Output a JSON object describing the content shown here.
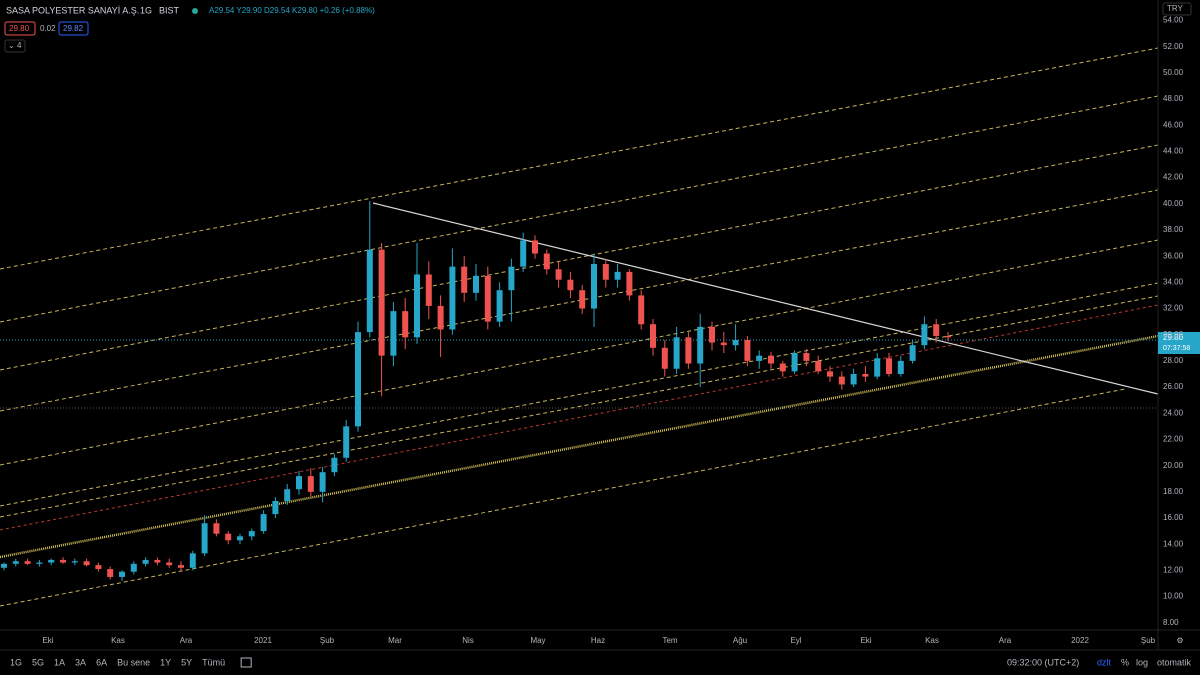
{
  "header": {
    "symbol": "SASA POLYESTER SANAYİ A.Ş.",
    "interval": "1G",
    "exchange": "BIST",
    "ohlc": "A29.54 Y29.90 D29.54 K29.80 +0.26 (+0.88%)",
    "bid": "29.80",
    "spread": "0.02",
    "ask": "29.82",
    "indicators": "4",
    "currency": "TRY"
  },
  "price_label": {
    "price": "29.80",
    "countdown": "07:37:58"
  },
  "toolbar": {
    "ranges": [
      "1G",
      "5G",
      "1A",
      "3A",
      "6A",
      "Bu sene",
      "1Y",
      "5Y",
      "Tümü"
    ],
    "time": "09:32:00 (UTC+2)",
    "options": [
      "dzlt",
      "%",
      "log",
      "otomatik"
    ]
  },
  "chart_data": {
    "type": "candlestick",
    "x_labels": [
      "Eki",
      "Kas",
      "Ara",
      "2021",
      "Şub",
      "Mar",
      "Nis",
      "May",
      "Haz",
      "Tem",
      "Ağu",
      "Eyl",
      "Eki",
      "Kas",
      "Ara",
      "2022",
      "Şub"
    ],
    "up_color": "#26a6c9",
    "down_color": "#ef5350",
    "ylim": [
      7.6,
      54.8
    ],
    "yticks": [
      {
        "value": 8,
        "label": "8.00"
      },
      {
        "value": 10,
        "label": "10.00"
      },
      {
        "value": 12,
        "label": "12.00"
      },
      {
        "value": 14,
        "label": "14.00"
      },
      {
        "value": 16,
        "label": "16.00"
      },
      {
        "value": 18,
        "label": "18.00"
      },
      {
        "value": 20,
        "label": "20.00"
      },
      {
        "value": 22,
        "label": "22.00"
      },
      {
        "value": 24,
        "label": "24.00"
      },
      {
        "value": 26,
        "label": "26.00"
      },
      {
        "value": 28,
        "label": "28.00"
      },
      {
        "value": 30,
        "label": "30.00"
      },
      {
        "value": 32,
        "label": "32.00"
      },
      {
        "value": 34,
        "label": "34.00"
      },
      {
        "value": 36,
        "label": "36.00"
      },
      {
        "value": 38,
        "label": "38.00"
      },
      {
        "value": 40,
        "label": "40.00"
      },
      {
        "value": 42,
        "label": "42.00"
      },
      {
        "value": 44,
        "label": "44.00"
      },
      {
        "value": 46,
        "label": "46.00"
      },
      {
        "value": 48,
        "label": "48.00"
      },
      {
        "value": 50,
        "label": "50.00"
      },
      {
        "value": 52,
        "label": "52.00"
      },
      {
        "value": 54,
        "label": "54.00"
      }
    ],
    "open": [
      12.2,
      12.5,
      12.7,
      12.5,
      12.6,
      12.8,
      12.6,
      12.7,
      12.4,
      12.1,
      11.5,
      11.9,
      12.5,
      12.8,
      12.6,
      12.4,
      12.2,
      13.3,
      15.6,
      14.8,
      14.3,
      14.6,
      15.0,
      16.3,
      17.3,
      18.2,
      19.2,
      18.0,
      19.5,
      20.6,
      23.0,
      30.2,
      36.5,
      28.4,
      31.8,
      29.8,
      34.6,
      32.2,
      30.4,
      35.2,
      33.2,
      34.5,
      31.0,
      33.4,
      35.2,
      37.2,
      36.2,
      35.0,
      34.2,
      33.4,
      32.0,
      35.4,
      34.2,
      34.8,
      33.0,
      30.8,
      29.0,
      27.4,
      29.8,
      27.8,
      30.6,
      29.4,
      29.2,
      29.6,
      28.0,
      28.4,
      27.8,
      27.2,
      28.6,
      28.0,
      27.2,
      26.8,
      26.2,
      27.0,
      26.8,
      28.2,
      27.0,
      28.0,
      29.2,
      30.8,
      29.9
    ],
    "high": [
      12.6,
      12.9,
      12.9,
      12.8,
      12.9,
      13.0,
      12.9,
      12.9,
      12.6,
      12.3,
      12.0,
      12.7,
      13.0,
      13.0,
      12.9,
      12.7,
      13.5,
      16.2,
      15.9,
      15.0,
      14.8,
      15.2,
      16.6,
      17.6,
      18.6,
      19.6,
      19.8,
      19.9,
      20.9,
      23.5,
      31.0,
      40.2,
      37.0,
      32.5,
      32.8,
      37.0,
      35.6,
      33.0,
      36.6,
      36.0,
      35.4,
      35.2,
      34.0,
      35.8,
      37.8,
      37.6,
      36.5,
      35.6,
      34.8,
      33.8,
      36.2,
      35.8,
      35.4,
      35.0,
      33.4,
      31.2,
      29.6,
      30.6,
      30.2,
      31.6,
      31.0,
      30.2,
      30.8,
      29.9,
      28.8,
      28.7,
      28.0,
      28.8,
      28.9,
      28.4,
      27.6,
      27.2,
      27.4,
      27.6,
      28.6,
      28.6,
      28.4,
      29.6,
      31.4,
      31.2,
      30.2
    ],
    "low": [
      12.0,
      12.3,
      12.4,
      12.3,
      12.4,
      12.5,
      12.4,
      12.3,
      11.9,
      11.3,
      11.2,
      11.7,
      12.3,
      12.4,
      12.2,
      11.9,
      12.0,
      13.1,
      14.6,
      14.0,
      14.0,
      14.3,
      14.8,
      16.0,
      17.0,
      17.8,
      17.6,
      17.2,
      19.2,
      20.3,
      22.6,
      29.8,
      25.3,
      27.6,
      28.9,
      29.3,
      31.2,
      28.3,
      30.0,
      32.5,
      32.6,
      30.4,
      30.6,
      31.0,
      34.8,
      35.8,
      34.6,
      33.6,
      32.8,
      31.6,
      30.6,
      33.6,
      33.6,
      32.6,
      30.4,
      28.4,
      26.8,
      27.0,
      27.4,
      26.0,
      28.8,
      28.6,
      28.8,
      27.6,
      27.4,
      27.4,
      26.8,
      27.0,
      27.6,
      27.0,
      26.4,
      25.8,
      26.0,
      26.4,
      26.6,
      26.8,
      26.8,
      27.8,
      28.9,
      29.4,
      29.5
    ],
    "close": [
      12.5,
      12.7,
      12.5,
      12.6,
      12.8,
      12.6,
      12.7,
      12.4,
      12.1,
      11.5,
      11.9,
      12.5,
      12.8,
      12.6,
      12.4,
      12.2,
      13.3,
      15.6,
      14.8,
      14.3,
      14.6,
      15.0,
      16.3,
      17.3,
      18.2,
      19.2,
      18.0,
      19.5,
      20.6,
      23.0,
      30.2,
      36.5,
      28.4,
      31.8,
      29.8,
      34.6,
      32.2,
      30.4,
      35.2,
      33.2,
      34.5,
      31.0,
      33.4,
      35.2,
      37.2,
      36.2,
      35.0,
      34.2,
      33.4,
      32.0,
      35.4,
      34.2,
      34.8,
      33.0,
      30.8,
      29.0,
      27.4,
      29.8,
      27.8,
      30.6,
      29.4,
      29.2,
      29.6,
      28.0,
      28.4,
      27.8,
      27.2,
      28.6,
      28.0,
      27.2,
      26.8,
      26.2,
      27.0,
      26.8,
      28.2,
      27.0,
      28.0,
      29.2,
      30.8,
      29.9,
      29.8
    ]
  }
}
